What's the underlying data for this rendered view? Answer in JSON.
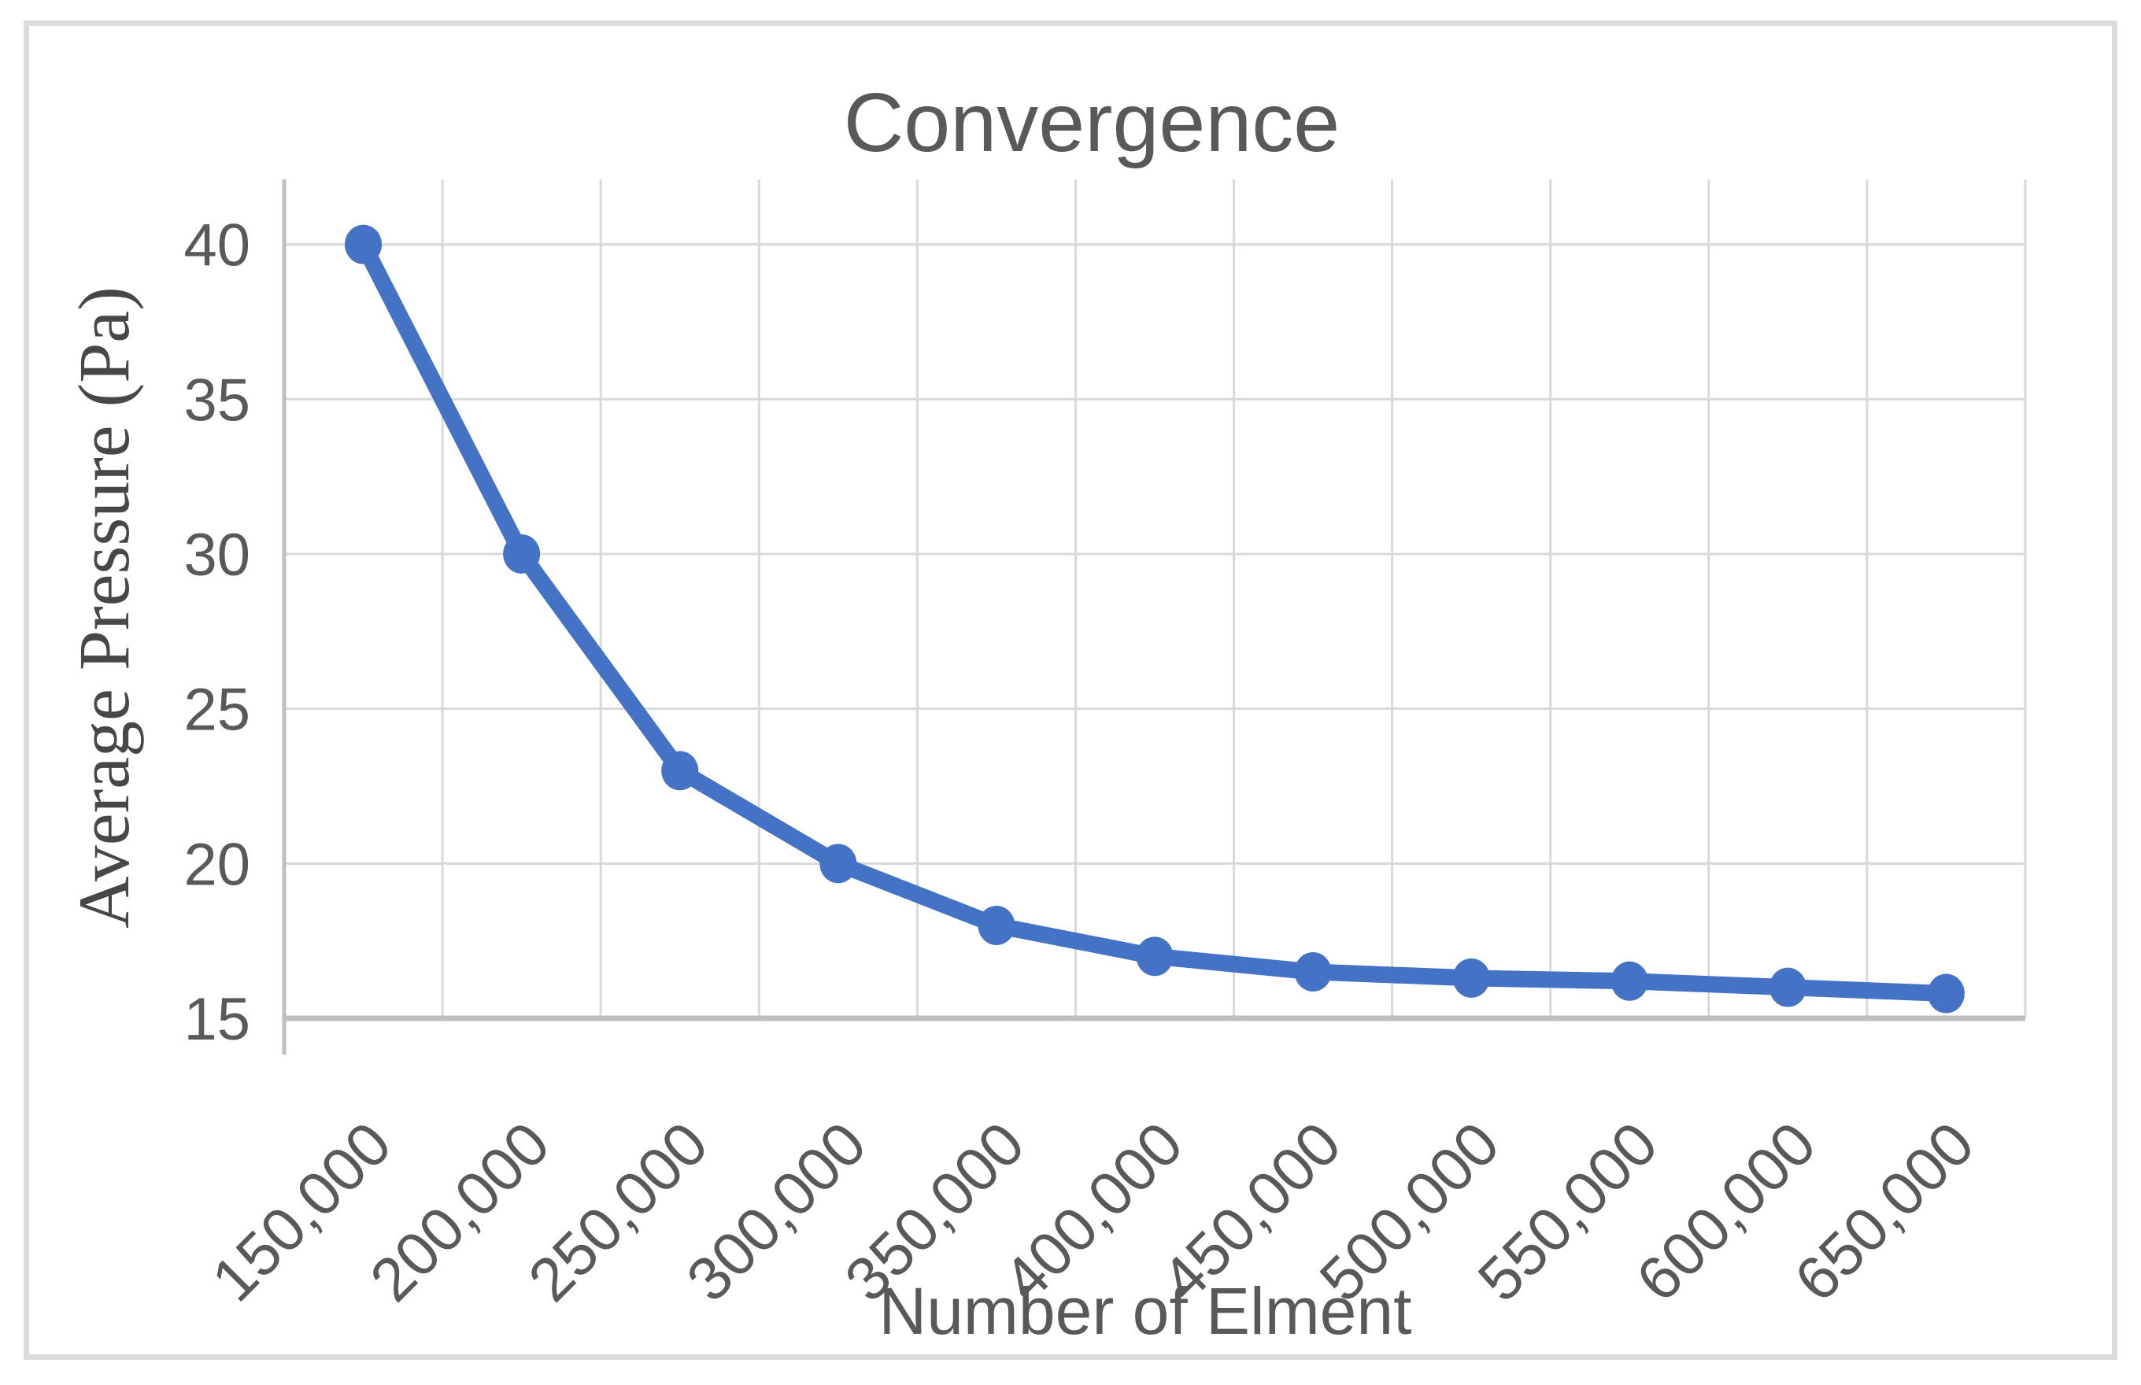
{
  "title": "Convergence",
  "chart_data": {
    "type": "line",
    "title": "Convergence",
    "xlabel": "Number of Elment",
    "ylabel": "Average Pressure (Pa)",
    "categories": [
      "150,000",
      "200,000",
      "250,000",
      "300,000",
      "350,000",
      "400,000",
      "450,000",
      "500,000",
      "550,000",
      "600,000",
      "650,000"
    ],
    "values": [
      40,
      30,
      23,
      20,
      18,
      17,
      16.5,
      16.3,
      16.2,
      16,
      15.8
    ],
    "yticks": [
      15,
      20,
      25,
      30,
      35,
      40
    ],
    "ylim": [
      15,
      42.1
    ],
    "grid": true,
    "legend_position": "none",
    "series_name": "Average Pressure",
    "series_color": "#4472C4",
    "gridline_color": "#D9D9D9",
    "axis_line_color": "#BFBFBF",
    "tick_text_color": "#595959",
    "title_color": "#595959",
    "axis_title_color": "#474747"
  }
}
